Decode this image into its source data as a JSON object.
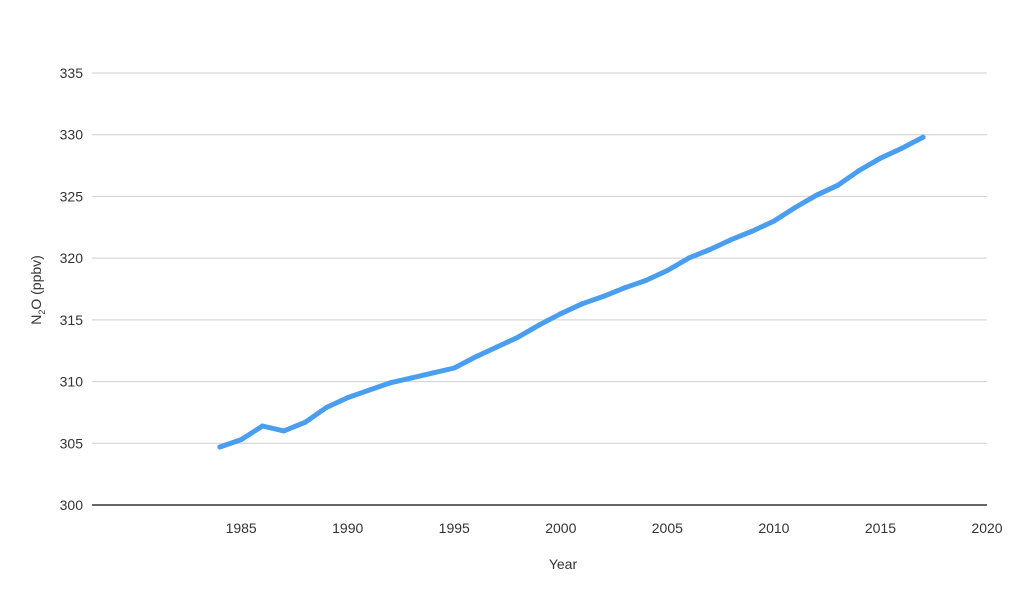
{
  "chart_data": {
    "type": "line",
    "title": "",
    "xlabel": "Year",
    "ylabel": {
      "main": "N",
      "sub": "2",
      "rest": "O (ppbv)"
    },
    "xlim": [
      1978,
      2020
    ],
    "ylim": [
      300,
      335
    ],
    "xticks": [
      "1985",
      "1990",
      "1995",
      "2000",
      "2005",
      "2010",
      "2015",
      "2020"
    ],
    "yticks": [
      "300",
      "305",
      "310",
      "315",
      "320",
      "325",
      "330",
      "335"
    ],
    "grid": true,
    "legend": "none",
    "colors": {
      "line": "#4a9ef0",
      "grid": "#cfcfcf",
      "baseline": "#666666",
      "text": "#333333"
    },
    "series": [
      {
        "x": [
          1984,
          1985,
          1986,
          1987,
          1988,
          1989,
          1990,
          1991,
          1992,
          1993,
          1994,
          1995,
          1996,
          1997,
          1998,
          1999,
          2000,
          2001,
          2002,
          2003,
          2004,
          2005,
          2006,
          2007,
          2008,
          2009,
          2010,
          2011,
          2012,
          2013,
          2014,
          2015,
          2016,
          2017
        ],
        "values": [
          304.7,
          305.3,
          306.4,
          306.0,
          306.7,
          307.9,
          308.7,
          309.3,
          309.9,
          310.3,
          310.7,
          311.1,
          312.0,
          312.8,
          313.6,
          314.6,
          315.5,
          316.3,
          316.9,
          317.6,
          318.2,
          319.0,
          320.0,
          320.7,
          321.5,
          322.2,
          323.0,
          324.1,
          325.1,
          325.9,
          327.1,
          328.1,
          328.9,
          329.8
        ]
      }
    ]
  }
}
